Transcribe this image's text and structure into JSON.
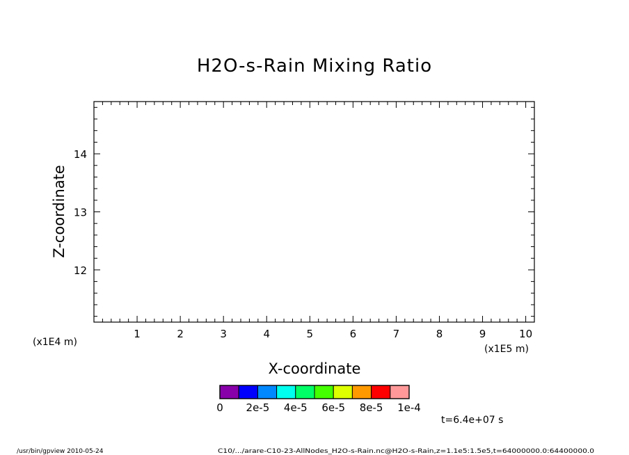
{
  "footer": {
    "left": "/usr/bin/gpview  2010-05-24",
    "right": "C10/.../arare-C10-23-AllNodes_H2O-s-Rain.nc@H2O-s-Rain,z=1.1e5:1.5e5,t=64000000.0:64400000.0"
  },
  "chart_data": {
    "type": "contour",
    "title": "H2O-s-Rain Mixing Ratio",
    "xlabel": "X-coordinate",
    "ylabel": "Z-coordinate",
    "x_units": "(x1E5 m)",
    "y_units": "(x1E4 m)",
    "xlim": [
      0,
      10.2
    ],
    "ylim": [
      11.1,
      14.9
    ],
    "x_ticks": [
      1,
      2,
      3,
      4,
      5,
      6,
      7,
      8,
      9,
      10
    ],
    "y_ticks": [
      12,
      13,
      14
    ],
    "x_minor_step": 0.2,
    "y_minor_step": 0.2,
    "time_label": "t=6.4e+07 s",
    "colorbar": {
      "colors": [
        "#8800aa",
        "#0000ff",
        "#0088ff",
        "#00ffee",
        "#00ff66",
        "#44ff00",
        "#ddff00",
        "#ff9900",
        "#ff0000",
        "#ff9999"
      ],
      "labels": [
        "0",
        "2e-5",
        "4e-5",
        "6e-5",
        "8e-5",
        "1e-4"
      ]
    }
  }
}
